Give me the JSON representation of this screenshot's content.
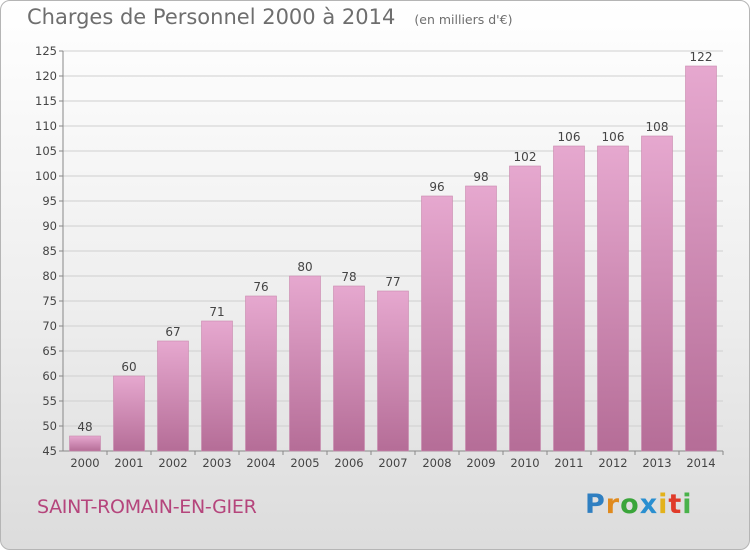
{
  "header": {
    "title": "Charges de Personnel 2000 à 2014",
    "unit": "(en milliers d'€)"
  },
  "footer": {
    "commune": "SAINT-ROMAIN-EN-GIER",
    "logo": {
      "letters": [
        "P",
        "r",
        "o",
        "x",
        "i",
        "t",
        "i"
      ],
      "colors": [
        "#2f7fc1",
        "#e08a1e",
        "#3aa53a",
        "#2a8fd0",
        "#e3b21b",
        "#e03b2a",
        "#49b24a"
      ]
    }
  },
  "colors": {
    "bar_light": "#e6a8cf",
    "bar_dark": "#b56d97",
    "label": "#444444",
    "grid": "#cfcfcf"
  },
  "chart_data": {
    "type": "bar",
    "title": "Charges de Personnel 2000 à 2014",
    "categories": [
      "2000",
      "2001",
      "2002",
      "2003",
      "2004",
      "2005",
      "2006",
      "2007",
      "2008",
      "2009",
      "2010",
      "2011",
      "2012",
      "2013",
      "2014"
    ],
    "values": [
      48,
      60,
      67,
      71,
      76,
      80,
      78,
      77,
      96,
      98,
      102,
      106,
      106,
      108,
      122
    ],
    "data_labels": [
      "48",
      "60",
      "67",
      "71",
      "76",
      "80",
      "78",
      "77",
      "96",
      "98",
      "102",
      "106",
      "106",
      "108",
      "122"
    ],
    "ylim": [
      45,
      125
    ],
    "yticks": [
      45,
      50,
      55,
      60,
      65,
      70,
      75,
      80,
      85,
      90,
      95,
      100,
      105,
      110,
      115,
      120,
      125
    ],
    "ytick_labels": [
      "45",
      "50",
      "55",
      "60",
      "65",
      "70",
      "75",
      "80",
      "85",
      "90",
      "95",
      "100",
      "105",
      "110",
      "115",
      "120",
      "125"
    ],
    "grid": true,
    "legend": false
  }
}
